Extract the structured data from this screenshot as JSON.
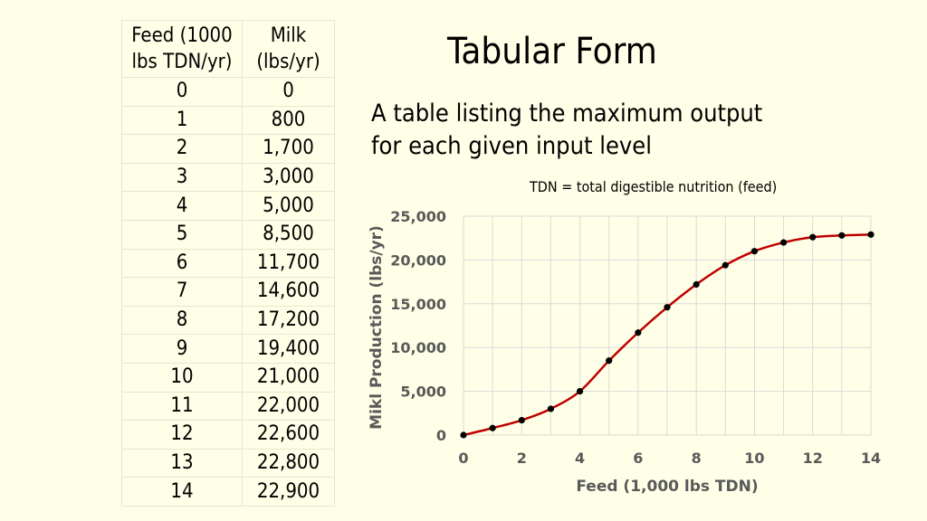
{
  "title": "Tabular Form",
  "description": "A table listing the maximum output for each given input level",
  "note": "TDN = total digestible nutrition (feed)",
  "table": {
    "headers": [
      "Feed (1000 lbs TDN/yr)",
      "Milk (lbs/yr)"
    ],
    "rows": [
      [
        "0",
        "0"
      ],
      [
        "1",
        "800"
      ],
      [
        "2",
        "1,700"
      ],
      [
        "3",
        "3,000"
      ],
      [
        "4",
        "5,000"
      ],
      [
        "5",
        "8,500"
      ],
      [
        "6",
        "11,700"
      ],
      [
        "7",
        "14,600"
      ],
      [
        "8",
        "17,200"
      ],
      [
        "9",
        "19,400"
      ],
      [
        "10",
        "21,000"
      ],
      [
        "11",
        "22,000"
      ],
      [
        "12",
        "22,600"
      ],
      [
        "13",
        "22,800"
      ],
      [
        "14",
        "22,900"
      ]
    ]
  },
  "chart_data": {
    "type": "line",
    "x": [
      0,
      1,
      2,
      3,
      4,
      5,
      6,
      7,
      8,
      9,
      10,
      11,
      12,
      13,
      14
    ],
    "series": [
      {
        "values": [
          0,
          800,
          1700,
          3000,
          5000,
          8500,
          11700,
          14600,
          17200,
          19400,
          21000,
          22000,
          22600,
          22800,
          22900
        ]
      }
    ],
    "xlabel": "Feed (1,000 lbs TDN)",
    "ylabel": "Mikl Production (lbs/yr)",
    "xlim": [
      0,
      14
    ],
    "ylim": [
      0,
      25000
    ],
    "xticks": [
      0,
      2,
      4,
      6,
      8,
      10,
      12,
      14
    ],
    "yticks": [
      0,
      5000,
      10000,
      15000,
      20000,
      25000
    ],
    "xtick_labels": [
      "0",
      "2",
      "4",
      "6",
      "8",
      "10",
      "12",
      "14"
    ],
    "ytick_labels": [
      "0",
      "5,000",
      "10,000",
      "15,000",
      "20,000",
      "25,000"
    ],
    "grid": true,
    "line_color": "#c00000",
    "marker_color": "#000000"
  }
}
